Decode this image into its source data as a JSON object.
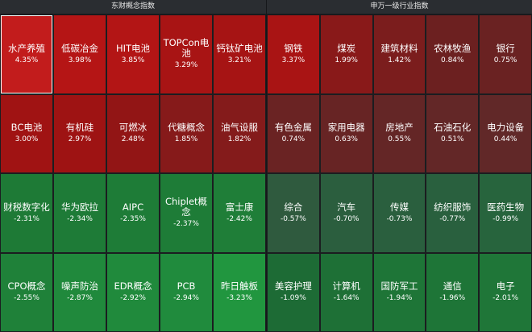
{
  "left_panel": {
    "title": "东财概念指数",
    "tiles": [
      {
        "name": "水产养殖",
        "value": "4.35%",
        "color": "#c21c1c",
        "selected": true
      },
      {
        "name": "低碳冶金",
        "value": "3.98%",
        "color": "#b51515"
      },
      {
        "name": "HIT电池",
        "value": "3.85%",
        "color": "#b31515"
      },
      {
        "name": "TOPCon电池",
        "value": "3.29%",
        "color": "#a81414"
      },
      {
        "name": "钙钛矿电池",
        "value": "3.21%",
        "color": "#a61414"
      },
      {
        "name": "BC电池",
        "value": "3.00%",
        "color": "#a01313"
      },
      {
        "name": "有机硅",
        "value": "2.97%",
        "color": "#9e1313"
      },
      {
        "name": "可燃冰",
        "value": "2.48%",
        "color": "#921515"
      },
      {
        "name": "代糖概念",
        "value": "1.85%",
        "color": "#861a1a"
      },
      {
        "name": "油气设服",
        "value": "1.82%",
        "color": "#841b1b"
      },
      {
        "name": "财税数字化",
        "value": "-2.31%",
        "color": "#1e7a36"
      },
      {
        "name": "华为欧拉",
        "value": "-2.34%",
        "color": "#1e7b37"
      },
      {
        "name": "AIPC",
        "value": "-2.35%",
        "color": "#1e7c37"
      },
      {
        "name": "Chiplet概念",
        "value": "-2.37%",
        "color": "#1e7c37"
      },
      {
        "name": "富士康",
        "value": "-2.42%",
        "color": "#1f7e38"
      },
      {
        "name": "CPO概念",
        "value": "-2.55%",
        "color": "#1f8139"
      },
      {
        "name": "噪声防治",
        "value": "-2.87%",
        "color": "#20893c"
      },
      {
        "name": "EDR概念",
        "value": "-2.92%",
        "color": "#208a3c"
      },
      {
        "name": "PCB",
        "value": "-2.94%",
        "color": "#208b3d"
      },
      {
        "name": "昨日触板",
        "value": "-3.23%",
        "color": "#21963f"
      }
    ]
  },
  "right_panel": {
    "title": "申万一级行业指数",
    "tiles": [
      {
        "name": "钢铁",
        "value": "3.37%",
        "color": "#a91414"
      },
      {
        "name": "煤炭",
        "value": "1.99%",
        "color": "#891919"
      },
      {
        "name": "建筑材料",
        "value": "1.42%",
        "color": "#7b1d1d"
      },
      {
        "name": "农林牧渔",
        "value": "0.84%",
        "color": "#6c2020"
      },
      {
        "name": "银行",
        "value": "0.75%",
        "color": "#6a2222"
      },
      {
        "name": "有色金属",
        "value": "0.74%",
        "color": "#6a2323"
      },
      {
        "name": "家用电器",
        "value": "0.63%",
        "color": "#672424"
      },
      {
        "name": "房地产",
        "value": "0.55%",
        "color": "#642626"
      },
      {
        "name": "石油石化",
        "value": "0.51%",
        "color": "#632727"
      },
      {
        "name": "电力设备",
        "value": "0.44%",
        "color": "#612828"
      },
      {
        "name": "综合",
        "value": "-0.57%",
        "color": "#2f5a3e"
      },
      {
        "name": "汽车",
        "value": "-0.70%",
        "color": "#2b5e3e"
      },
      {
        "name": "传媒",
        "value": "-0.73%",
        "color": "#2a5f3e"
      },
      {
        "name": "纺织服饰",
        "value": "-0.77%",
        "color": "#29603e"
      },
      {
        "name": "医药生物",
        "value": "-0.99%",
        "color": "#27643d"
      },
      {
        "name": "美容护理",
        "value": "-1.09%",
        "color": "#1d6b35"
      },
      {
        "name": "计算机",
        "value": "-1.64%",
        "color": "#1e7036"
      },
      {
        "name": "国防军工",
        "value": "-1.94%",
        "color": "#1e7537"
      },
      {
        "name": "通信",
        "value": "-1.96%",
        "color": "#1e7537"
      },
      {
        "name": "电子",
        "value": "-2.01%",
        "color": "#1f7638"
      }
    ]
  }
}
